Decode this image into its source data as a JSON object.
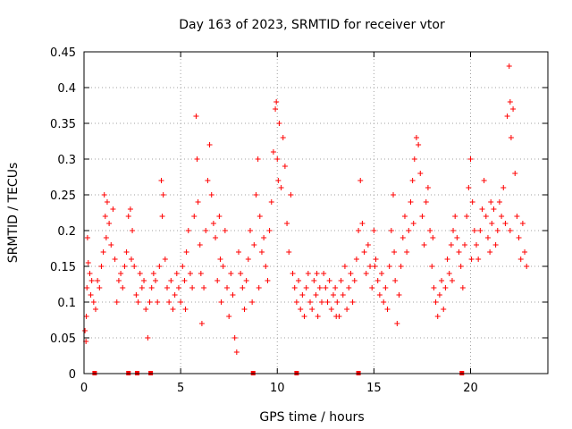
{
  "chart_data": {
    "type": "scatter",
    "title": "Day 163 of 2023, SRMTID for receiver vtor",
    "xlabel": "GPS time / hours",
    "ylabel": "SRMTID / TECUs",
    "xlim": [
      0,
      24
    ],
    "ylim": [
      0,
      0.45
    ],
    "xticks": [
      0,
      5,
      10,
      15,
      20
    ],
    "xtick_labels": [
      "0",
      "5",
      "10",
      "15",
      "20"
    ],
    "yticks": [
      0,
      0.05,
      0.1,
      0.15,
      0.2,
      0.25,
      0.3,
      0.35,
      0.4,
      0.45
    ],
    "ytick_labels": [
      "0",
      "0.05",
      "0.1",
      "0.15",
      "0.2",
      "0.25",
      "0.3",
      "0.35",
      "0.4",
      "0.45"
    ],
    "grid": true,
    "marker": "plus",
    "color": "#ff0000",
    "zero_markers_x": [
      0.55,
      2.3,
      2.75,
      3.45,
      8.75,
      11.0,
      14.2,
      19.55
    ],
    "series": [
      {
        "name": "SRMTID",
        "points": [
          [
            0.05,
            0.06
          ],
          [
            0.1,
            0.045
          ],
          [
            0.12,
            0.08
          ],
          [
            0.15,
            0.12
          ],
          [
            0.18,
            0.19
          ],
          [
            0.22,
            0.155
          ],
          [
            0.3,
            0.14
          ],
          [
            0.4,
            0.13
          ],
          [
            0.5,
            0.1
          ],
          [
            0.6,
            0.09
          ],
          [
            0.7,
            0.13
          ],
          [
            0.8,
            0.12
          ],
          [
            0.9,
            0.15
          ],
          [
            1.0,
            0.17
          ],
          [
            1.05,
            0.25
          ],
          [
            1.1,
            0.22
          ],
          [
            1.2,
            0.24
          ],
          [
            1.3,
            0.21
          ],
          [
            1.4,
            0.18
          ],
          [
            1.5,
            0.23
          ],
          [
            1.6,
            0.16
          ],
          [
            1.7,
            0.1
          ],
          [
            1.8,
            0.13
          ],
          [
            1.9,
            0.14
          ],
          [
            2.0,
            0.12
          ],
          [
            2.1,
            0.15
          ],
          [
            2.2,
            0.17
          ],
          [
            2.3,
            0.22
          ],
          [
            2.4,
            0.23
          ],
          [
            2.5,
            0.2
          ],
          [
            2.6,
            0.15
          ],
          [
            2.7,
            0.11
          ],
          [
            2.8,
            0.1
          ],
          [
            2.9,
            0.14
          ],
          [
            3.0,
            0.12
          ],
          [
            3.1,
            0.13
          ],
          [
            3.2,
            0.09
          ],
          [
            3.3,
            0.05
          ],
          [
            3.4,
            0.1
          ],
          [
            3.5,
            0.12
          ],
          [
            3.6,
            0.14
          ],
          [
            3.7,
            0.13
          ],
          [
            3.8,
            0.1
          ],
          [
            3.9,
            0.15
          ],
          [
            4.0,
            0.27
          ],
          [
            4.1,
            0.25
          ],
          [
            4.2,
            0.16
          ],
          [
            4.3,
            0.12
          ],
          [
            4.4,
            0.1
          ],
          [
            4.5,
            0.13
          ],
          [
            4.6,
            0.09
          ],
          [
            4.7,
            0.11
          ],
          [
            4.8,
            0.14
          ],
          [
            4.9,
            0.12
          ],
          [
            5.0,
            0.1
          ],
          [
            5.1,
            0.15
          ],
          [
            5.2,
            0.13
          ],
          [
            5.3,
            0.17
          ],
          [
            5.4,
            0.2
          ],
          [
            5.5,
            0.14
          ],
          [
            5.6,
            0.12
          ],
          [
            5.7,
            0.22
          ],
          [
            5.8,
            0.36
          ],
          [
            5.85,
            0.3
          ],
          [
            5.9,
            0.24
          ],
          [
            6.0,
            0.18
          ],
          [
            6.1,
            0.07
          ],
          [
            6.2,
            0.12
          ],
          [
            6.3,
            0.2
          ],
          [
            6.4,
            0.27
          ],
          [
            6.5,
            0.32
          ],
          [
            6.6,
            0.25
          ],
          [
            6.7,
            0.21
          ],
          [
            6.8,
            0.19
          ],
          [
            6.9,
            0.13
          ],
          [
            7.0,
            0.22
          ],
          [
            7.1,
            0.1
          ],
          [
            7.2,
            0.15
          ],
          [
            7.3,
            0.2
          ],
          [
            7.4,
            0.12
          ],
          [
            7.5,
            0.08
          ],
          [
            7.6,
            0.14
          ],
          [
            7.7,
            0.11
          ],
          [
            7.8,
            0.05
          ],
          [
            7.9,
            0.03
          ],
          [
            8.0,
            0.17
          ],
          [
            8.1,
            0.14
          ],
          [
            8.2,
            0.12
          ],
          [
            8.3,
            0.09
          ],
          [
            8.4,
            0.13
          ],
          [
            8.5,
            0.16
          ],
          [
            8.6,
            0.2
          ],
          [
            8.7,
            0.1
          ],
          [
            8.8,
            0.18
          ],
          [
            8.9,
            0.25
          ],
          [
            9.0,
            0.3
          ],
          [
            9.1,
            0.22
          ],
          [
            9.2,
            0.17
          ],
          [
            9.3,
            0.19
          ],
          [
            9.4,
            0.15
          ],
          [
            9.5,
            0.13
          ],
          [
            9.6,
            0.2
          ],
          [
            9.7,
            0.24
          ],
          [
            9.8,
            0.31
          ],
          [
            9.9,
            0.37
          ],
          [
            9.95,
            0.38
          ],
          [
            10.0,
            0.3
          ],
          [
            10.1,
            0.35
          ],
          [
            10.2,
            0.26
          ],
          [
            10.3,
            0.33
          ],
          [
            10.4,
            0.29
          ],
          [
            10.5,
            0.21
          ],
          [
            10.6,
            0.17
          ],
          [
            10.7,
            0.25
          ],
          [
            10.8,
            0.14
          ],
          [
            10.9,
            0.12
          ],
          [
            11.0,
            0.1
          ],
          [
            11.1,
            0.13
          ],
          [
            11.2,
            0.09
          ],
          [
            11.3,
            0.11
          ],
          [
            11.4,
            0.08
          ],
          [
            11.5,
            0.12
          ],
          [
            11.6,
            0.14
          ],
          [
            11.7,
            0.1
          ],
          [
            11.8,
            0.09
          ],
          [
            11.9,
            0.13
          ],
          [
            12.0,
            0.11
          ],
          [
            12.1,
            0.08
          ],
          [
            12.2,
            0.12
          ],
          [
            12.3,
            0.1
          ],
          [
            12.4,
            0.14
          ],
          [
            12.5,
            0.12
          ],
          [
            12.6,
            0.1
          ],
          [
            12.7,
            0.13
          ],
          [
            12.8,
            0.09
          ],
          [
            12.9,
            0.11
          ],
          [
            13.0,
            0.12
          ],
          [
            13.1,
            0.1
          ],
          [
            13.2,
            0.08
          ],
          [
            13.3,
            0.13
          ],
          [
            13.4,
            0.11
          ],
          [
            13.5,
            0.15
          ],
          [
            13.6,
            0.09
          ],
          [
            13.7,
            0.12
          ],
          [
            13.8,
            0.14
          ],
          [
            13.9,
            0.1
          ],
          [
            14.0,
            0.13
          ],
          [
            14.1,
            0.16
          ],
          [
            14.2,
            0.2
          ],
          [
            14.3,
            0.27
          ],
          [
            14.4,
            0.21
          ],
          [
            14.5,
            0.17
          ],
          [
            14.6,
            0.14
          ],
          [
            14.7,
            0.18
          ],
          [
            14.8,
            0.15
          ],
          [
            14.9,
            0.12
          ],
          [
            15.0,
            0.2
          ],
          [
            15.1,
            0.16
          ],
          [
            15.2,
            0.13
          ],
          [
            15.3,
            0.11
          ],
          [
            15.4,
            0.14
          ],
          [
            15.5,
            0.1
          ],
          [
            15.6,
            0.12
          ],
          [
            15.7,
            0.09
          ],
          [
            15.8,
            0.15
          ],
          [
            15.9,
            0.2
          ],
          [
            16.0,
            0.25
          ],
          [
            16.1,
            0.13
          ],
          [
            16.2,
            0.07
          ],
          [
            16.3,
            0.11
          ],
          [
            16.4,
            0.15
          ],
          [
            16.5,
            0.19
          ],
          [
            16.6,
            0.22
          ],
          [
            16.7,
            0.17
          ],
          [
            16.8,
            0.2
          ],
          [
            16.9,
            0.24
          ],
          [
            17.0,
            0.27
          ],
          [
            17.1,
            0.3
          ],
          [
            17.2,
            0.33
          ],
          [
            17.3,
            0.32
          ],
          [
            17.4,
            0.28
          ],
          [
            17.5,
            0.22
          ],
          [
            17.6,
            0.18
          ],
          [
            17.7,
            0.24
          ],
          [
            17.8,
            0.26
          ],
          [
            17.9,
            0.2
          ],
          [
            18.0,
            0.15
          ],
          [
            18.1,
            0.12
          ],
          [
            18.2,
            0.1
          ],
          [
            18.3,
            0.08
          ],
          [
            18.4,
            0.11
          ],
          [
            18.5,
            0.13
          ],
          [
            18.6,
            0.09
          ],
          [
            18.7,
            0.12
          ],
          [
            18.8,
            0.16
          ],
          [
            18.9,
            0.14
          ],
          [
            19.0,
            0.18
          ],
          [
            19.1,
            0.2
          ],
          [
            19.2,
            0.22
          ],
          [
            19.3,
            0.19
          ],
          [
            19.4,
            0.17
          ],
          [
            19.5,
            0.15
          ],
          [
            19.6,
            0.12
          ],
          [
            19.7,
            0.18
          ],
          [
            19.8,
            0.22
          ],
          [
            19.9,
            0.26
          ],
          [
            20.0,
            0.3
          ],
          [
            20.1,
            0.24
          ],
          [
            20.2,
            0.2
          ],
          [
            20.3,
            0.18
          ],
          [
            20.4,
            0.16
          ],
          [
            20.5,
            0.2
          ],
          [
            20.6,
            0.23
          ],
          [
            20.7,
            0.27
          ],
          [
            20.8,
            0.22
          ],
          [
            20.9,
            0.19
          ],
          [
            21.0,
            0.17
          ],
          [
            21.1,
            0.21
          ],
          [
            21.2,
            0.23
          ],
          [
            21.3,
            0.18
          ],
          [
            21.4,
            0.2
          ],
          [
            21.5,
            0.24
          ],
          [
            21.6,
            0.22
          ],
          [
            21.7,
            0.26
          ],
          [
            21.8,
            0.21
          ],
          [
            21.9,
            0.36
          ],
          [
            22.0,
            0.43
          ],
          [
            22.05,
            0.38
          ],
          [
            22.1,
            0.33
          ],
          [
            22.2,
            0.37
          ],
          [
            22.3,
            0.28
          ],
          [
            22.4,
            0.22
          ],
          [
            22.5,
            0.19
          ],
          [
            22.6,
            0.16
          ],
          [
            22.7,
            0.21
          ],
          [
            22.8,
            0.17
          ],
          [
            22.9,
            0.15
          ],
          [
            0.35,
            0.11
          ],
          [
            1.15,
            0.19
          ],
          [
            2.45,
            0.16
          ],
          [
            4.05,
            0.22
          ],
          [
            5.25,
            0.09
          ],
          [
            6.05,
            0.14
          ],
          [
            7.05,
            0.16
          ],
          [
            9.05,
            0.12
          ],
          [
            10.05,
            0.27
          ],
          [
            12.05,
            0.14
          ],
          [
            13.05,
            0.08
          ],
          [
            15.05,
            0.15
          ],
          [
            16.05,
            0.17
          ],
          [
            17.05,
            0.21
          ],
          [
            18.05,
            0.19
          ],
          [
            19.05,
            0.13
          ],
          [
            20.05,
            0.16
          ],
          [
            21.05,
            0.24
          ],
          [
            22.05,
            0.2
          ]
        ]
      }
    ]
  }
}
